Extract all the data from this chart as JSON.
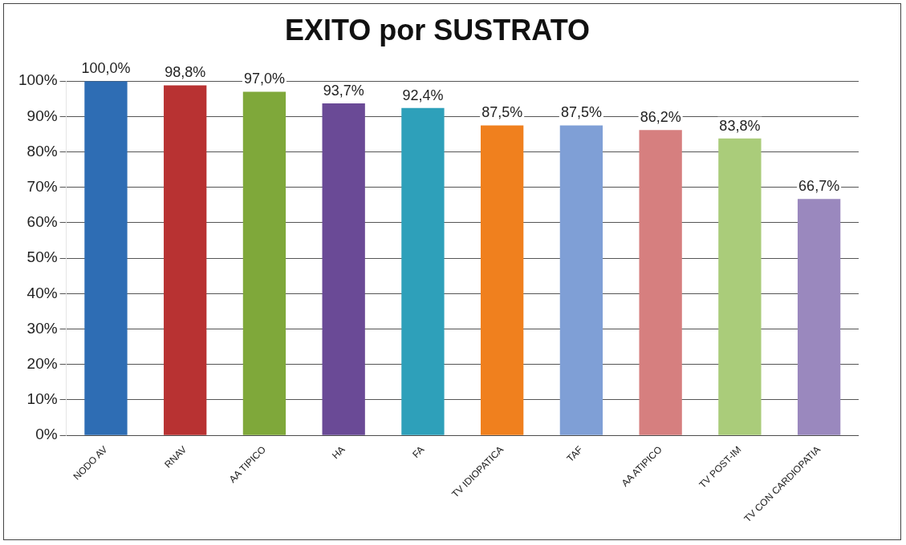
{
  "chart_data": {
    "type": "bar",
    "title": "EXITO por SUSTRATO",
    "categories": [
      "NODO AV",
      "RNAV",
      "AA TIPICO",
      "HA",
      "FA",
      "TV IDIOPATICA",
      "TAF",
      "AA ATIPICO",
      "TV POST-IM",
      "TV CON CARDIOPATIA"
    ],
    "values": [
      100.0,
      98.8,
      97.0,
      93.7,
      92.4,
      87.5,
      87.5,
      86.2,
      83.8,
      66.7
    ],
    "colors": [
      "#2e6db4",
      "#b83232",
      "#7fa83a",
      "#6a4a96",
      "#2ea0ba",
      "#f0801e",
      "#7f9fd6",
      "#d67f7f",
      "#aacc7a",
      "#9a88be"
    ],
    "value_labels": [
      "100,0%",
      "98,8%",
      "97,0%",
      "93,7%",
      "92,4%",
      "87,5%",
      "87,5%",
      "86,2%",
      "83,8%",
      "66,7%"
    ],
    "ylim": [
      0,
      100
    ],
    "yticks": [
      {
        "value": 0,
        "label": "0%"
      },
      {
        "value": 10,
        "label": "10%"
      },
      {
        "value": 20,
        "label": "20%"
      },
      {
        "value": 30,
        "label": "30%"
      },
      {
        "value": 40,
        "label": "40%"
      },
      {
        "value": 50,
        "label": "50%"
      },
      {
        "value": 60,
        "label": "60%"
      },
      {
        "value": 70,
        "label": "70%"
      },
      {
        "value": 80,
        "label": "80%"
      },
      {
        "value": 90,
        "label": "90%"
      },
      {
        "value": 100,
        "label": "100%"
      }
    ],
    "grid": "y",
    "legend": false
  }
}
